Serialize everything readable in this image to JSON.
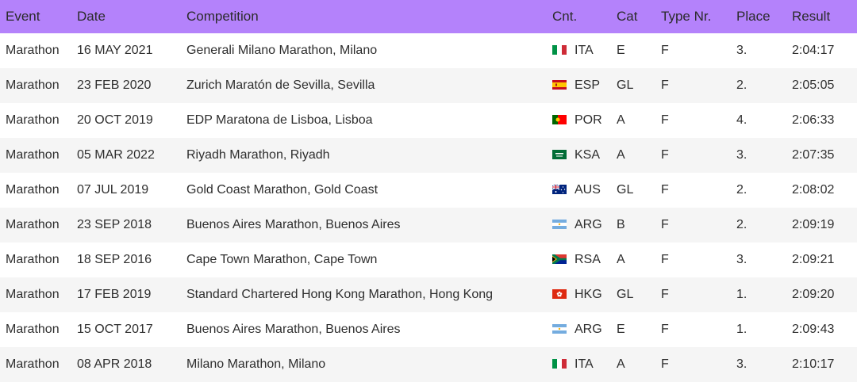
{
  "columns": [
    "Event",
    "Date",
    "Competition",
    "Cnt.",
    "Cat",
    "Type Nr.",
    "Place",
    "Result"
  ],
  "rows": [
    {
      "event": "Marathon",
      "date": "16 MAY 2021",
      "competition": "Generali Milano Marathon, Milano",
      "flag": "italy-flag-icon",
      "country": "ITA",
      "cat": "E",
      "type": "F",
      "place": "3.",
      "result": "2:04:17"
    },
    {
      "event": "Marathon",
      "date": "23 FEB 2020",
      "competition": "Zurich Maratón de Sevilla, Sevilla",
      "flag": "spain-flag-icon",
      "country": "ESP",
      "cat": "GL",
      "type": "F",
      "place": "2.",
      "result": "2:05:05"
    },
    {
      "event": "Marathon",
      "date": "20 OCT 2019",
      "competition": "EDP Maratona de Lisboa, Lisboa",
      "flag": "portugal-flag-icon",
      "country": "POR",
      "cat": "A",
      "type": "F",
      "place": "4.",
      "result": "2:06:33"
    },
    {
      "event": "Marathon",
      "date": "05 MAR 2022",
      "competition": "Riyadh Marathon, Riyadh",
      "flag": "saudi-arabia-flag-icon",
      "country": "KSA",
      "cat": "A",
      "type": "F",
      "place": "3.",
      "result": "2:07:35"
    },
    {
      "event": "Marathon",
      "date": "07 JUL 2019",
      "competition": "Gold Coast Marathon, Gold Coast",
      "flag": "australia-flag-icon",
      "country": "AUS",
      "cat": "GL",
      "type": "F",
      "place": "2.",
      "result": "2:08:02"
    },
    {
      "event": "Marathon",
      "date": "23 SEP 2018",
      "competition": "Buenos Aires Marathon, Buenos Aires",
      "flag": "argentina-flag-icon",
      "country": "ARG",
      "cat": "B",
      "type": "F",
      "place": "2.",
      "result": "2:09:19"
    },
    {
      "event": "Marathon",
      "date": "18 SEP 2016",
      "competition": "Cape Town Marathon, Cape Town",
      "flag": "south-africa-flag-icon",
      "country": "RSA",
      "cat": "A",
      "type": "F",
      "place": "3.",
      "result": "2:09:21"
    },
    {
      "event": "Marathon",
      "date": "17 FEB 2019",
      "competition": "Standard Chartered Hong Kong Marathon, Hong Kong",
      "flag": "hong-kong-flag-icon",
      "country": "HKG",
      "cat": "GL",
      "type": "F",
      "place": "1.",
      "result": "2:09:20"
    },
    {
      "event": "Marathon",
      "date": "15 OCT 2017",
      "competition": "Buenos Aires Marathon, Buenos Aires",
      "flag": "argentina-flag-icon",
      "country": "ARG",
      "cat": "E",
      "type": "F",
      "place": "1.",
      "result": "2:09:43"
    },
    {
      "event": "Marathon",
      "date": "08 APR 2018",
      "competition": "Milano Marathon, Milano",
      "flag": "italy-flag-icon",
      "country": "ITA",
      "cat": "A",
      "type": "F",
      "place": "3.",
      "result": "2:10:17"
    }
  ],
  "colors": {
    "header_bg": "#b482fb",
    "row_alt_bg": "#f5f5f5"
  }
}
